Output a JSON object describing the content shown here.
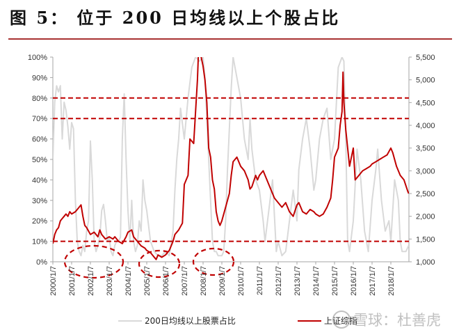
{
  "header": {
    "title": "图  5：  位于 200 日均线以上个股占比"
  },
  "chart_data": {
    "type": "line",
    "title": "图 5：位于 200 日均线以上个股占比",
    "xlabel": "",
    "ylabel_left": "",
    "ylabel_right": "",
    "x_tick_labels": [
      "2000/1/7",
      "2001/1/7",
      "2002/1/7",
      "2003/1/7",
      "2004/1/7",
      "2005/1/7",
      "2006/1/7",
      "2007/1/7",
      "2008/1/7",
      "2009/1/7",
      "2010/1/7",
      "2011/1/7",
      "2012/1/7",
      "2013/1/7",
      "2014/1/7",
      "2015/1/7",
      "2016/1/7",
      "2017/1/7",
      "2018/1/7"
    ],
    "y_left_ticks": [
      "0%",
      "10%",
      "20%",
      "30%",
      "40%",
      "50%",
      "60%",
      "70%",
      "80%",
      "90%",
      "100%"
    ],
    "y_left_range": [
      0,
      100
    ],
    "y_right_ticks": [
      "1,000",
      "1,500",
      "2,000",
      "2,500",
      "3,000",
      "3,500",
      "4,000",
      "4,500",
      "5,000",
      "5,500"
    ],
    "y_right_range": [
      1000,
      5500
    ],
    "grid": false,
    "legend_position": "bottom",
    "reference_lines": [
      {
        "axis": "left",
        "value": 80,
        "style": "dashed",
        "color": "#c00000"
      },
      {
        "axis": "left",
        "value": 70,
        "style": "dashed",
        "color": "#c00000"
      },
      {
        "axis": "left",
        "value": 10,
        "style": "dashed",
        "color": "#c00000"
      }
    ],
    "annotations": [
      {
        "type": "dashed-ellipse",
        "around": "2001-2003 low",
        "color": "#c00000"
      },
      {
        "type": "dashed-ellipse",
        "around": "2005-2006 low",
        "color": "#c00000"
      },
      {
        "type": "dashed-ellipse",
        "around": "2008-2009 low",
        "color": "#c00000"
      }
    ],
    "series": [
      {
        "name": "200日均线以上股票占比",
        "axis": "left",
        "color": "#d9d9d9",
        "x": [
          2000.0,
          2000.1,
          2000.2,
          2000.3,
          2000.4,
          2000.5,
          2000.6,
          2000.7,
          2000.8,
          2000.9,
          2001.0,
          2001.1,
          2001.2,
          2001.3,
          2001.4,
          2001.5,
          2001.6,
          2001.7,
          2001.8,
          2001.9,
          2002.0,
          2002.1,
          2002.2,
          2002.3,
          2002.4,
          2002.5,
          2002.6,
          2002.7,
          2002.8,
          2002.9,
          2003.0,
          2003.1,
          2003.2,
          2003.3,
          2003.4,
          2003.5,
          2003.6,
          2003.7,
          2003.8,
          2003.9,
          2004.0,
          2004.1,
          2004.2,
          2004.3,
          2004.4,
          2004.5,
          2004.6,
          2004.7,
          2004.8,
          2004.9,
          2005.0,
          2005.2,
          2005.4,
          2005.6,
          2005.8,
          2006.0,
          2006.2,
          2006.4,
          2006.5,
          2006.6,
          2006.7,
          2006.8,
          2007.0,
          2007.2,
          2007.4,
          2007.6,
          2007.8,
          2008.0,
          2008.1,
          2008.2,
          2008.3,
          2008.4,
          2008.5,
          2008.6,
          2008.7,
          2008.8,
          2009.0,
          2009.1,
          2009.2,
          2009.3,
          2009.4,
          2009.5,
          2009.6,
          2009.7,
          2009.8,
          2009.9,
          2010.0,
          2010.2,
          2010.4,
          2010.5,
          2010.6,
          2010.8,
          2011.0,
          2011.2,
          2011.3,
          2011.5,
          2011.7,
          2011.9,
          2012.0,
          2012.2,
          2012.4,
          2012.6,
          2012.8,
          2013.0,
          2013.1,
          2013.3,
          2013.5,
          2013.7,
          2013.9,
          2014.0,
          2014.2,
          2014.4,
          2014.6,
          2014.8,
          2015.0,
          2015.2,
          2015.4,
          2015.5,
          2015.6,
          2015.7,
          2015.8,
          2016.0,
          2016.2,
          2016.4,
          2016.6,
          2016.8,
          2017.0,
          2017.2,
          2017.3,
          2017.5,
          2017.7,
          2017.9,
          2018.0,
          2018.2,
          2018.4,
          2018.5,
          2018.6,
          2018.8,
          2018.95
        ],
        "values": [
          50,
          78,
          86,
          83,
          86,
          60,
          78,
          74,
          66,
          55,
          68,
          65,
          30,
          10,
          5,
          3,
          8,
          5,
          15,
          20,
          59,
          40,
          10,
          5,
          8,
          12,
          25,
          28,
          20,
          10,
          12,
          5,
          3,
          8,
          10,
          10,
          12,
          60,
          82,
          50,
          25,
          10,
          30,
          10,
          5,
          8,
          20,
          15,
          40,
          30,
          25,
          10,
          5,
          3,
          3,
          5,
          3,
          15,
          35,
          50,
          60,
          75,
          60,
          80,
          95,
          100,
          98,
          100,
          90,
          70,
          50,
          30,
          10,
          5,
          5,
          3,
          3,
          5,
          20,
          45,
          65,
          85,
          100,
          95,
          90,
          85,
          80,
          60,
          50,
          70,
          55,
          40,
          35,
          20,
          10,
          25,
          40,
          5,
          10,
          3,
          5,
          20,
          35,
          20,
          45,
          60,
          70,
          55,
          35,
          40,
          60,
          70,
          75,
          50,
          60,
          95,
          100,
          98,
          60,
          10,
          5,
          20,
          55,
          40,
          15,
          5,
          30,
          45,
          55,
          30,
          15,
          20,
          10,
          40,
          30,
          10,
          5,
          5,
          8
        ]
      },
      {
        "name": "上证综指",
        "axis": "right",
        "color": "#c00000",
        "x": [
          2000.0,
          2000.1,
          2000.2,
          2000.3,
          2000.4,
          2000.5,
          2000.6,
          2000.7,
          2000.8,
          2000.9,
          2001.0,
          2001.2,
          2001.4,
          2001.5,
          2001.6,
          2001.7,
          2001.8,
          2002.0,
          2002.2,
          2002.4,
          2002.5,
          2002.6,
          2002.8,
          2003.0,
          2003.2,
          2003.3,
          2003.5,
          2003.7,
          2003.9,
          2004.0,
          2004.2,
          2004.3,
          2004.5,
          2004.7,
          2004.9,
          2005.0,
          2005.2,
          2005.4,
          2005.5,
          2005.6,
          2005.8,
          2006.0,
          2006.2,
          2006.4,
          2006.5,
          2006.7,
          2006.9,
          2007.0,
          2007.2,
          2007.3,
          2007.5,
          2007.6,
          2007.7,
          2007.8,
          2007.9,
          2008.0,
          2008.1,
          2008.2,
          2008.3,
          2008.4,
          2008.5,
          2008.6,
          2008.7,
          2008.8,
          2008.9,
          2009.0,
          2009.2,
          2009.4,
          2009.5,
          2009.6,
          2009.8,
          2010.0,
          2010.2,
          2010.4,
          2010.5,
          2010.6,
          2010.8,
          2010.9,
          2011.0,
          2011.2,
          2011.4,
          2011.6,
          2011.8,
          2012.0,
          2012.2,
          2012.4,
          2012.6,
          2012.8,
          2013.0,
          2013.1,
          2013.3,
          2013.5,
          2013.7,
          2013.9,
          2014.0,
          2014.2,
          2014.4,
          2014.6,
          2014.8,
          2014.9,
          2015.0,
          2015.2,
          2015.3,
          2015.4,
          2015.45,
          2015.5,
          2015.6,
          2015.7,
          2015.8,
          2015.9,
          2016.0,
          2016.1,
          2016.3,
          2016.5,
          2016.7,
          2016.9,
          2017.0,
          2017.2,
          2017.4,
          2017.6,
          2017.8,
          2018.0,
          2018.1,
          2018.3,
          2018.5,
          2018.7,
          2018.9,
          2018.95
        ],
        "values": [
          1400,
          1600,
          1700,
          1750,
          1900,
          1950,
          2000,
          2050,
          2000,
          2100,
          2050,
          2100,
          2200,
          2250,
          2000,
          1800,
          1750,
          1600,
          1650,
          1550,
          1700,
          1600,
          1500,
          1550,
          1500,
          1550,
          1450,
          1400,
          1550,
          1650,
          1700,
          1550,
          1450,
          1350,
          1300,
          1250,
          1200,
          1100,
          1050,
          1150,
          1100,
          1150,
          1250,
          1450,
          1600,
          1700,
          1850,
          2700,
          2900,
          3700,
          3600,
          4300,
          5000,
          6100,
          5500,
          5300,
          5000,
          4500,
          3500,
          3300,
          2800,
          2600,
          2100,
          1900,
          1800,
          1900,
          2200,
          2500,
          2900,
          3200,
          3300,
          3100,
          3000,
          2800,
          2600,
          2650,
          2900,
          2800,
          2900,
          3000,
          2800,
          2600,
          2400,
          2300,
          2200,
          2300,
          2100,
          2000,
          2250,
          2300,
          2100,
          2050,
          2150,
          2100,
          2050,
          2000,
          2050,
          2200,
          2400,
          2800,
          3300,
          3500,
          4000,
          4300,
          5170,
          4500,
          3900,
          3500,
          3100,
          3300,
          3500,
          2800,
          2900,
          3000,
          3050,
          3100,
          3150,
          3200,
          3250,
          3300,
          3350,
          3500,
          3400,
          3100,
          2900,
          2800,
          2550,
          2500
        ]
      }
    ]
  },
  "legend": {
    "items": [
      {
        "label": "200日均线以上股票占比",
        "color": "#d9d9d9"
      },
      {
        "label": "上证综指",
        "color": "#c00000"
      }
    ]
  },
  "watermark": {
    "text": "雪球：杜善虎"
  },
  "colors": {
    "accent": "#c00000",
    "gray_series": "#d9d9d9",
    "title_rule": "#a83232",
    "axis": "#a6a6a6"
  }
}
